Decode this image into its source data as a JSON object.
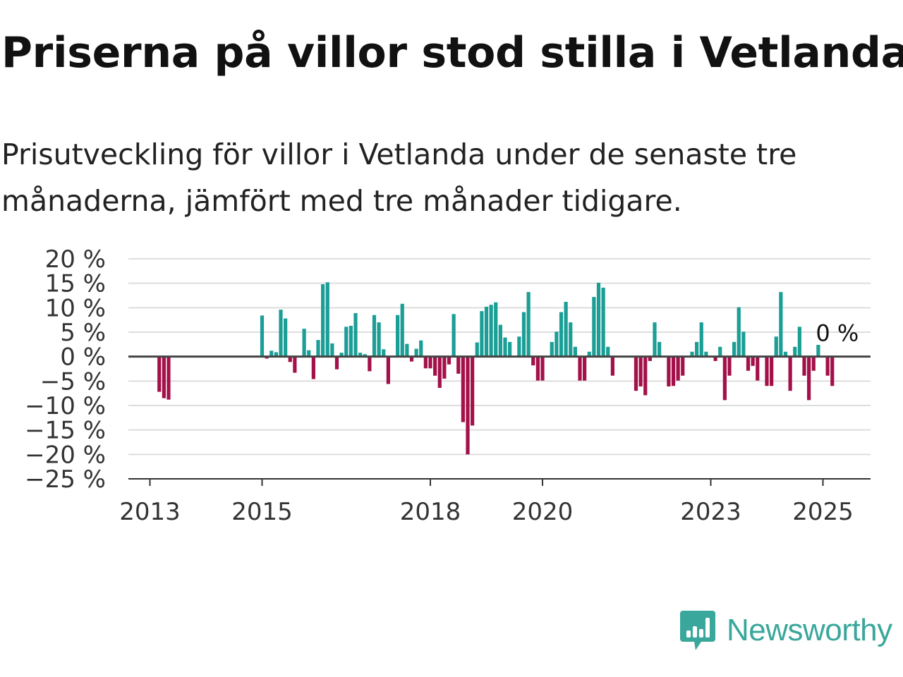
{
  "title": "Priserna på villor stod stilla i Vetlanda",
  "subtitle": "Prisutveckling för villor i Vetlanda under de senaste tre månaderna, jämfört med tre månader tidigare.",
  "brand": {
    "name": "Newsworthy",
    "color": "#3aa79c",
    "icon": "bar-chart-speech-bubble-icon"
  },
  "colors": {
    "positive": "#1a9e96",
    "negative": "#a3104a",
    "zero_line": "#444444",
    "grid": "#dddddd"
  },
  "chart_data": {
    "type": "bar",
    "x_axis": "time (monthly)",
    "y_unit": "%",
    "ylim": [
      -25,
      20
    ],
    "y_ticks": [
      20,
      15,
      10,
      5,
      0,
      -5,
      -10,
      -15,
      -20,
      -25
    ],
    "y_tick_labels": [
      "20 %",
      "15 %",
      "10 %",
      "5 %",
      "0 %",
      "−5 %",
      "−10 %",
      "−15 %",
      "−20 %",
      "−25 %"
    ],
    "x_ticks": [
      2013,
      2015,
      2018,
      2020,
      2023,
      2025
    ],
    "grid": "horizontal",
    "last_value_label": "0 %",
    "series": [
      {
        "points": [
          {
            "t": "2013-03",
            "v": -7.2
          },
          {
            "t": "2013-04",
            "v": -8.5
          },
          {
            "t": "2013-05",
            "v": -8.8
          },
          {
            "t": "2015-01",
            "v": 8.4
          },
          {
            "t": "2015-02",
            "v": -0.4
          },
          {
            "t": "2015-03",
            "v": 1.2
          },
          {
            "t": "2015-04",
            "v": 0.9
          },
          {
            "t": "2015-05",
            "v": 9.6
          },
          {
            "t": "2015-06",
            "v": 7.8
          },
          {
            "t": "2015-07",
            "v": -1.1
          },
          {
            "t": "2015-08",
            "v": -3.3
          },
          {
            "t": "2015-10",
            "v": 5.7
          },
          {
            "t": "2015-11",
            "v": 1.3
          },
          {
            "t": "2015-12",
            "v": -4.6
          },
          {
            "t": "2016-01",
            "v": 3.4
          },
          {
            "t": "2016-02",
            "v": 14.8
          },
          {
            "t": "2016-03",
            "v": 15.2
          },
          {
            "t": "2016-04",
            "v": 2.7
          },
          {
            "t": "2016-05",
            "v": -2.6
          },
          {
            "t": "2016-06",
            "v": 0.8
          },
          {
            "t": "2016-07",
            "v": 6.1
          },
          {
            "t": "2016-08",
            "v": 6.3
          },
          {
            "t": "2016-09",
            "v": 8.9
          },
          {
            "t": "2016-10",
            "v": 0.8
          },
          {
            "t": "2016-11",
            "v": 0.5
          },
          {
            "t": "2016-12",
            "v": -3.0
          },
          {
            "t": "2017-01",
            "v": 8.5
          },
          {
            "t": "2017-02",
            "v": 7.0
          },
          {
            "t": "2017-03",
            "v": 1.5
          },
          {
            "t": "2017-04",
            "v": -5.6
          },
          {
            "t": "2017-06",
            "v": 8.5
          },
          {
            "t": "2017-07",
            "v": 10.8
          },
          {
            "t": "2017-08",
            "v": 2.6
          },
          {
            "t": "2017-09",
            "v": -1.0
          },
          {
            "t": "2017-10",
            "v": 1.6
          },
          {
            "t": "2017-11",
            "v": 3.3
          },
          {
            "t": "2017-12",
            "v": -2.4
          },
          {
            "t": "2018-01",
            "v": -2.4
          },
          {
            "t": "2018-02",
            "v": -3.9
          },
          {
            "t": "2018-03",
            "v": -6.4
          },
          {
            "t": "2018-04",
            "v": -4.5
          },
          {
            "t": "2018-05",
            "v": -1.6
          },
          {
            "t": "2018-06",
            "v": 8.7
          },
          {
            "t": "2018-07",
            "v": -3.5
          },
          {
            "t": "2018-08",
            "v": -13.4
          },
          {
            "t": "2018-09",
            "v": -20.0
          },
          {
            "t": "2018-10",
            "v": -14.1
          },
          {
            "t": "2018-11",
            "v": 2.9
          },
          {
            "t": "2018-12",
            "v": 9.3
          },
          {
            "t": "2019-01",
            "v": 10.2
          },
          {
            "t": "2019-02",
            "v": 10.6
          },
          {
            "t": "2019-03",
            "v": 11.1
          },
          {
            "t": "2019-04",
            "v": 6.5
          },
          {
            "t": "2019-05",
            "v": 3.9
          },
          {
            "t": "2019-06",
            "v": 3.0
          },
          {
            "t": "2019-08",
            "v": 4.1
          },
          {
            "t": "2019-09",
            "v": 9.1
          },
          {
            "t": "2019-10",
            "v": 13.2
          },
          {
            "t": "2019-11",
            "v": -1.8
          },
          {
            "t": "2019-12",
            "v": -4.9
          },
          {
            "t": "2020-01",
            "v": -4.9
          },
          {
            "t": "2020-03",
            "v": 3.0
          },
          {
            "t": "2020-04",
            "v": 5.1
          },
          {
            "t": "2020-05",
            "v": 9.1
          },
          {
            "t": "2020-06",
            "v": 11.2
          },
          {
            "t": "2020-07",
            "v": 7.0
          },
          {
            "t": "2020-08",
            "v": 2.0
          },
          {
            "t": "2020-09",
            "v": -4.9
          },
          {
            "t": "2020-10",
            "v": -4.9
          },
          {
            "t": "2020-11",
            "v": 1.0
          },
          {
            "t": "2020-12",
            "v": 12.2
          },
          {
            "t": "2021-01",
            "v": 15.1
          },
          {
            "t": "2021-02",
            "v": 14.1
          },
          {
            "t": "2021-03",
            "v": 2.0
          },
          {
            "t": "2021-04",
            "v": -3.9
          },
          {
            "t": "2021-09",
            "v": -7.0
          },
          {
            "t": "2021-10",
            "v": -6.1
          },
          {
            "t": "2021-11",
            "v": -7.9
          },
          {
            "t": "2021-12",
            "v": -0.9
          },
          {
            "t": "2022-01",
            "v": 7.0
          },
          {
            "t": "2022-02",
            "v": 3.0
          },
          {
            "t": "2022-04",
            "v": -6.1
          },
          {
            "t": "2022-05",
            "v": -6.0
          },
          {
            "t": "2022-06",
            "v": -4.9
          },
          {
            "t": "2022-07",
            "v": -3.9
          },
          {
            "t": "2022-09",
            "v": 1.0
          },
          {
            "t": "2022-10",
            "v": 3.0
          },
          {
            "t": "2022-11",
            "v": 7.0
          },
          {
            "t": "2022-12",
            "v": 1.0
          },
          {
            "t": "2023-02",
            "v": -0.9
          },
          {
            "t": "2023-03",
            "v": 2.0
          },
          {
            "t": "2023-04",
            "v": -8.9
          },
          {
            "t": "2023-05",
            "v": -3.9
          },
          {
            "t": "2023-06",
            "v": 3.0
          },
          {
            "t": "2023-07",
            "v": 10.1
          },
          {
            "t": "2023-08",
            "v": 5.1
          },
          {
            "t": "2023-09",
            "v": -2.9
          },
          {
            "t": "2023-10",
            "v": -1.9
          },
          {
            "t": "2023-11",
            "v": -4.9
          },
          {
            "t": "2024-01",
            "v": -6.0
          },
          {
            "t": "2024-02",
            "v": -6.0
          },
          {
            "t": "2024-03",
            "v": 4.1
          },
          {
            "t": "2024-04",
            "v": 13.2
          },
          {
            "t": "2024-05",
            "v": 1.0
          },
          {
            "t": "2024-06",
            "v": -7.0
          },
          {
            "t": "2024-07",
            "v": 2.0
          },
          {
            "t": "2024-08",
            "v": 6.1
          },
          {
            "t": "2024-09",
            "v": -3.9
          },
          {
            "t": "2024-10",
            "v": -8.9
          },
          {
            "t": "2024-11",
            "v": -2.9
          },
          {
            "t": "2024-12",
            "v": 2.4
          },
          {
            "t": "2025-02",
            "v": -3.9
          },
          {
            "t": "2025-03",
            "v": -6.0
          },
          {
            "t": "2025-04",
            "v": 0.0
          }
        ]
      }
    ]
  }
}
